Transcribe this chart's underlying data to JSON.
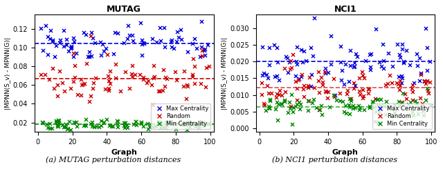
{
  "mutag": {
    "title": "MUTAG",
    "xlabel": "Graph",
    "ylabel": "|MPNN(S_v) - MPNN(G)|",
    "xlim": [
      -2,
      102
    ],
    "ylim": [
      0.01,
      0.135
    ],
    "yticks": [
      0.02,
      0.04,
      0.06,
      0.08,
      0.1,
      0.12
    ],
    "blue_mean": 0.1045,
    "red_mean": 0.067,
    "green_mean": 0.018,
    "blue_spread": 0.01,
    "red_spread": 0.013,
    "green_spread": 0.0025,
    "blue_clip": [
      0.09,
      0.128
    ],
    "red_clip": [
      0.025,
      0.125
    ],
    "green_clip": [
      0.012,
      0.045
    ],
    "caption": "(a) MUTAG perturbation distances",
    "n_blue": 80,
    "n_red": 80,
    "n_green": 100,
    "seed": 42
  },
  "nci1": {
    "title": "NCI1",
    "xlabel": "Graph",
    "ylabel": "|MPNN(S_v) - MPNN(G)|",
    "xlim": [
      -2,
      102
    ],
    "ylim": [
      -0.001,
      0.034
    ],
    "yticks": [
      0.0,
      0.005,
      0.01,
      0.015,
      0.02,
      0.025,
      0.03
    ],
    "blue_mean": 0.02,
    "red_mean": 0.0122,
    "green_mean": 0.0065,
    "blue_spread": 0.004,
    "red_spread": 0.003,
    "green_spread": 0.002,
    "blue_clip": [
      0.01,
      0.033
    ],
    "red_clip": [
      0.003,
      0.022
    ],
    "green_clip": [
      0.0005,
      0.012
    ],
    "caption": "(b) NCI1 perturbation distances",
    "n_blue": 90,
    "n_red": 90,
    "n_green": 90,
    "seed": 99
  },
  "blue_color": "#0000dd",
  "red_color": "#cc0000",
  "green_color": "#008800",
  "legend_labels": [
    "Max Centrality",
    "Random",
    "Min Centrality"
  ],
  "marker": "x",
  "marker_lw": 1.0,
  "marker_s": 14,
  "dash_lw": 1.2
}
